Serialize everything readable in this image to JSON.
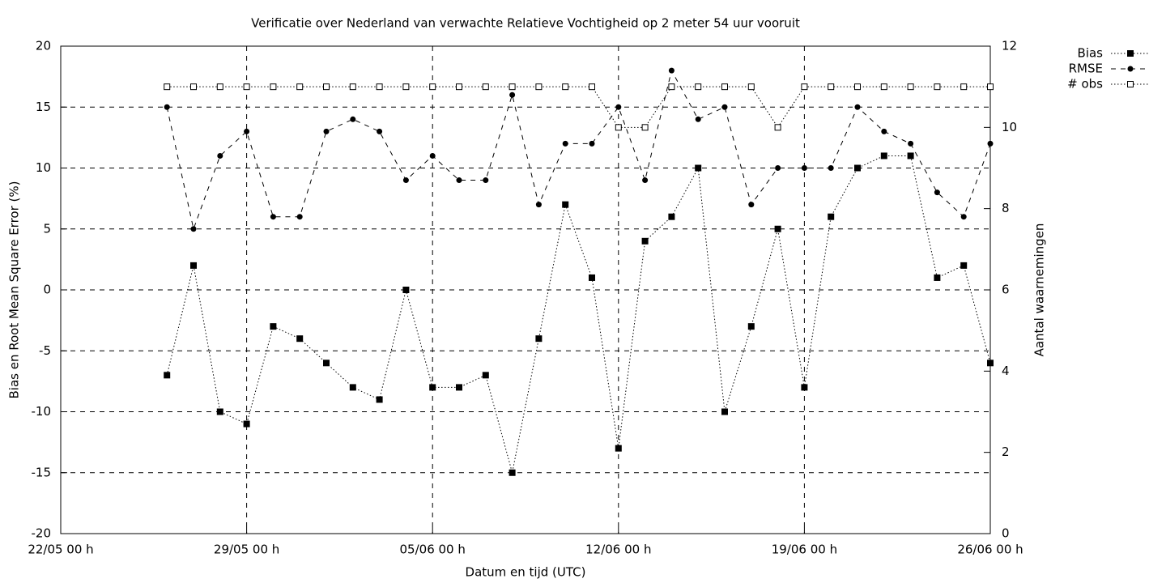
{
  "chart_data": {
    "type": "line",
    "title": "Verificatie over Nederland van verwachte Relatieve Vochtigheid op 2 meter 54 uur vooruit",
    "x_label": "Datum en tijd (UTC)",
    "y_label": "Bias en Root Mean Square Error (%)",
    "y2_label": "Aantal waarnemingen",
    "x": [
      "26/05 00 h",
      "27/05 00 h",
      "28/05 00 h",
      "29/05 00 h",
      "30/05 00 h",
      "31/05 00 h",
      "01/06 00 h",
      "02/06 00 h",
      "03/06 00 h",
      "04/06 00 h",
      "05/06 00 h",
      "06/06 00 h",
      "07/06 00 h",
      "08/06 00 h",
      "09/06 00 h",
      "10/06 00 h",
      "11/06 00 h",
      "12/06 00 h",
      "13/06 00 h",
      "14/06 00 h",
      "15/06 00 h",
      "16/06 00 h",
      "17/06 00 h",
      "18/06 00 h",
      "19/06 00 h",
      "20/06 00 h",
      "21/06 00 h",
      "22/06 00 h",
      "23/06 00 h",
      "24/06 00 h",
      "25/06 00 h",
      "26/06 00 h"
    ],
    "xlim": [
      "22/05 00 h",
      "26/06 00 h"
    ],
    "xticks": [
      "22/05 00 h",
      "29/05 00 h",
      "05/06 00 h",
      "12/06 00 h",
      "19/06 00 h",
      "26/06 00 h"
    ],
    "ylim": [
      -20,
      20
    ],
    "yticks": [
      -20,
      -15,
      -10,
      -5,
      0,
      5,
      10,
      15,
      20
    ],
    "y2lim": [
      0,
      12
    ],
    "y2ticks": [
      0,
      2,
      4,
      6,
      8,
      10,
      12
    ],
    "grid": true,
    "legend": "outside-top-right",
    "series": [
      {
        "name": "Bias",
        "color": "#000000",
        "line_style": "dotted",
        "marker": "filled-square",
        "values": [
          -7,
          2,
          -10,
          -11,
          -3,
          -4,
          -6,
          -8,
          -9,
          0,
          -8,
          -8,
          -7,
          -15,
          -4,
          7,
          1,
          -13,
          4,
          6,
          10,
          -10,
          -3,
          5,
          -8,
          6,
          10,
          11,
          11,
          1,
          2,
          -6
        ]
      },
      {
        "name": "RMSE",
        "color": "#000000",
        "line_style": "dashed",
        "marker": "filled-circle",
        "values": [
          15,
          5,
          11,
          13,
          6,
          6,
          13,
          14,
          13,
          9,
          11,
          9,
          9,
          16,
          7,
          12,
          12,
          15,
          9,
          18,
          14,
          15,
          7,
          10,
          10,
          10,
          15,
          13,
          12,
          8,
          6,
          12
        ]
      },
      {
        "name": "# obs",
        "color": "#000000",
        "line_style": "dotted",
        "marker": "open-square",
        "axis": "y2",
        "values": [
          11,
          11,
          11,
          11,
          11,
          11,
          11,
          11,
          11,
          11,
          11,
          11,
          11,
          11,
          11,
          11,
          11,
          10,
          10,
          11,
          11,
          11,
          11,
          10,
          11,
          11,
          11,
          11,
          11,
          11,
          11,
          11
        ]
      }
    ]
  }
}
